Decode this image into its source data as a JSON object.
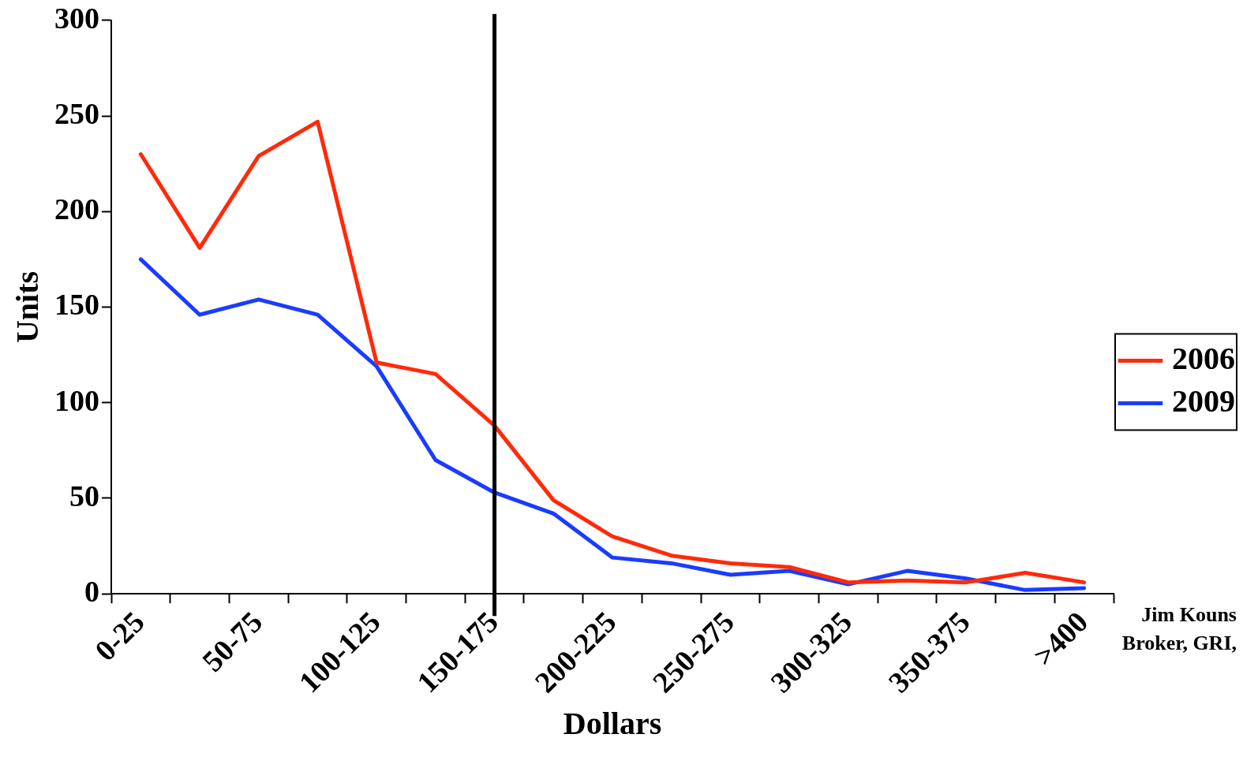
{
  "chart_data": {
    "type": "line",
    "xlabel": "Dollars",
    "ylabel": "Units",
    "categories": [
      "0-25",
      null,
      "50-75",
      null,
      "100-125",
      null,
      "150-175",
      null,
      "200-225",
      null,
      "250-275",
      null,
      "300-325",
      null,
      "350-375",
      null,
      ">400"
    ],
    "series": [
      {
        "name": "2006",
        "color": "#ff2a0a",
        "values": [
          230,
          181,
          229,
          247,
          121,
          115,
          88,
          49,
          30,
          20,
          16,
          14,
          6,
          7,
          6,
          11,
          6
        ]
      },
      {
        "name": "2009",
        "color": "#1a3cff",
        "values": [
          175,
          146,
          154,
          146,
          119,
          70,
          53,
          42,
          19,
          16,
          10,
          12,
          5,
          12,
          8,
          2,
          3
        ]
      }
    ],
    "ylim": [
      0,
      300
    ],
    "yticks": [
      0,
      50,
      100,
      150,
      200,
      250,
      300
    ],
    "grid": false,
    "legend": "right",
    "marker": "none",
    "line_style": "solid",
    "ref_lines": [
      {
        "axis": "x",
        "value": "150-175",
        "color": "#000000"
      }
    ],
    "annotations": [
      "Jim Kouns",
      "Broker, GRI,"
    ]
  }
}
